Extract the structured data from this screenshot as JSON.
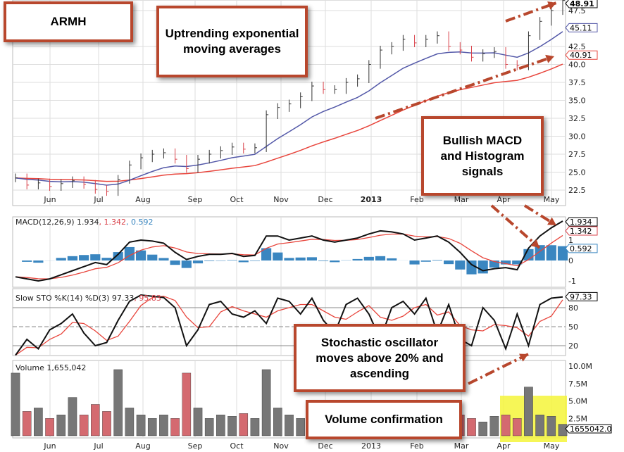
{
  "chart_data": {
    "type": "line",
    "ticker": "ARMH",
    "months": [
      "Jun",
      "Jul",
      "Aug",
      "Sep",
      "Oct",
      "Nov",
      "Dec",
      "2013",
      "Feb",
      "Mar",
      "Apr",
      "May"
    ],
    "price": {
      "yticks": [
        "22.5",
        "25.0",
        "27.5",
        "30.0",
        "32.5",
        "35.0",
        "37.5",
        "40.0",
        "42.5",
        "47.5"
      ],
      "ylim": [
        21,
        49.5
      ],
      "closes": [
        24.2,
        23.2,
        23.5,
        23.0,
        23.4,
        23.8,
        23.3,
        22.6,
        22.3,
        24.0,
        26.0,
        27.0,
        27.5,
        27.7,
        26.8,
        25.5,
        26.8,
        27.5,
        28.0,
        28.5,
        28.2,
        28.4,
        33.0,
        34.0,
        34.5,
        35.5,
        37.0,
        36.5,
        36.5,
        37.5,
        38.0,
        40.0,
        42.0,
        42.5,
        43.5,
        43.0,
        43.5,
        44.0,
        42.5,
        42.0,
        41.0,
        41.5,
        41.8,
        40.0,
        39.8,
        44.0,
        46.0,
        47.5,
        48.9
      ],
      "last_label": "48.91",
      "ema_fast_label": "45.11",
      "ema_slow_label": "40.91"
    },
    "macd": {
      "title": "MACD(12,26,9)",
      "macd_value": "1.934",
      "signal_value": "1.342",
      "hist_value": "0.592",
      "yticks": [
        "1",
        "0",
        "-1"
      ],
      "ylim": [
        -1.4,
        2.2
      ],
      "macd": [
        -0.8,
        -0.9,
        -1.0,
        -0.9,
        -0.7,
        -0.5,
        -0.3,
        -0.1,
        -0.2,
        0.3,
        0.9,
        1.0,
        0.95,
        0.85,
        0.4,
        0.05,
        0.2,
        0.3,
        0.3,
        0.35,
        0.2,
        0.25,
        1.2,
        1.2,
        1.0,
        1.1,
        1.2,
        1.0,
        0.9,
        1.0,
        1.1,
        1.3,
        1.45,
        1.4,
        1.3,
        1.0,
        1.1,
        1.2,
        0.9,
        0.4,
        -0.2,
        -0.5,
        -0.4,
        -0.35,
        -0.45,
        0.6,
        1.2,
        1.6,
        1.93
      ]
    },
    "sto": {
      "title": "Slow STO %K(14) %D(3)",
      "k_value": "97.33",
      "d_value": "95.83",
      "yticks": [
        "80",
        "50",
        "20"
      ],
      "ylim": [
        0,
        110
      ],
      "k": [
        5,
        30,
        15,
        45,
        55,
        70,
        40,
        20,
        25,
        60,
        90,
        100,
        98,
        96,
        80,
        20,
        45,
        85,
        90,
        70,
        65,
        75,
        55,
        95,
        90,
        70,
        95,
        60,
        40,
        85,
        95,
        70,
        30,
        80,
        90,
        70,
        95,
        40,
        85,
        30,
        20,
        80,
        60,
        15,
        70,
        20,
        85,
        95,
        97
      ]
    },
    "volume": {
      "title": "Volume 1,655,042",
      "last_label": "1655042.0",
      "yticks": [
        "10.0M",
        "7.5M",
        "5.0M",
        "2.5M"
      ],
      "ylim": [
        0,
        10.5
      ],
      "values": [
        9.0,
        3.5,
        4.0,
        2.5,
        3.0,
        5.5,
        3.0,
        4.5,
        3.5,
        9.5,
        4.0,
        3.0,
        2.5,
        3.0,
        2.5,
        9.0,
        4.0,
        2.5,
        3.0,
        2.8,
        3.2,
        2.5,
        9.5,
        4.0,
        3.0,
        2.5,
        3.0,
        2.0,
        2.5,
        3.0,
        3.5,
        2.5,
        4.0,
        3.0,
        3.5,
        2.5,
        2.0,
        2.8,
        2.5,
        3.0,
        2.5,
        2.0,
        2.8,
        3.0,
        2.5,
        7.0,
        3.0,
        2.8,
        1.66
      ]
    },
    "colors": {
      "up": "#333333",
      "down": "#d9434b",
      "ema_fast": "#5358a8",
      "ema_slow": "#e8453c",
      "hist": "#3a86c0",
      "annotation": "#b8472d",
      "highlight": "#f5f53a"
    }
  },
  "annotations": {
    "ticker": "ARMH",
    "uptrend": "Uptrending exponential moving averages",
    "macd": "Bullish MACD and Histogram signals",
    "sto": "Stochastic oscillator moves above 20% and ascending",
    "volume": "Volume confirmation"
  }
}
